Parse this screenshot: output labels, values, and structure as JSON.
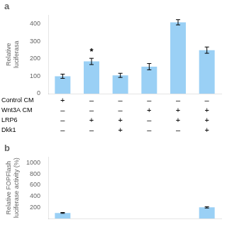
{
  "chart_data": [
    {
      "type": "bar",
      "title": "a",
      "categories": [
        null,
        null,
        null,
        null,
        null,
        null
      ],
      "values": [
        100,
        185,
        105,
        155,
        410,
        250
      ],
      "errors": [
        12,
        18,
        12,
        18,
        15,
        18
      ],
      "y_label": [
        "Relative",
        "luciferasa"
      ],
      "ylim": [
        0,
        450
      ],
      "yticks": [
        0,
        100,
        200,
        300,
        400
      ],
      "grid": false,
      "tick_labels": "y",
      "annotations": [
        {
          "text": "*",
          "index": 1
        }
      ],
      "table": [
        [
          "Control CM",
          "+",
          "–",
          "–",
          "–",
          "–",
          "–"
        ],
        [
          "Wnt3A CM",
          "–",
          "–",
          "–",
          "+",
          "+",
          "+"
        ],
        [
          "LRP6",
          "–",
          "+",
          "+",
          "–",
          "+",
          "+"
        ],
        [
          "Dkk1",
          "–",
          "–",
          "+",
          "–",
          "–",
          "+"
        ]
      ]
    },
    {
      "type": "bar",
      "title": "b",
      "categories": [
        null,
        null,
        null,
        null,
        null,
        null
      ],
      "values": [
        100,
        null,
        null,
        null,
        null,
        200
      ],
      "errors": [
        8,
        null,
        null,
        null,
        null,
        12
      ],
      "y_label": [
        "Relative FOPFlash",
        "luciferase activity (%)"
      ],
      "ylim": [
        0,
        1100
      ],
      "yticks": [
        200,
        400,
        600,
        800,
        1000
      ],
      "grid": false,
      "tick_labels": "y"
    }
  ]
}
